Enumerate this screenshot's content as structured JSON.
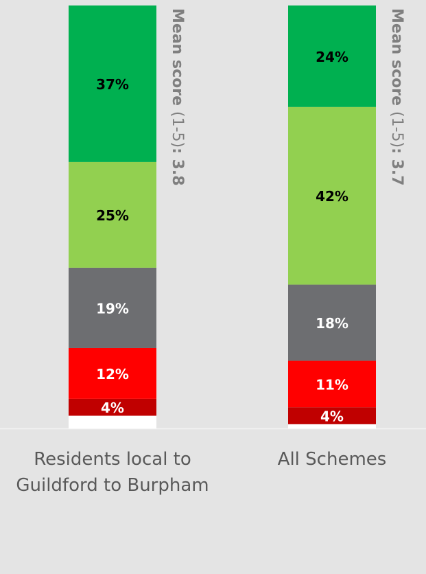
{
  "chart_data": {
    "type": "stacked_bar",
    "categories": [
      "Residents local to Guildford to Burpham",
      "All Schemes"
    ],
    "ylim": [
      0,
      100
    ],
    "series": [
      {
        "color": "#ffffff",
        "values": [
          3,
          1
        ]
      },
      {
        "color": "#c00000",
        "values": [
          4,
          4
        ],
        "value_labels": [
          "4%",
          "4%"
        ],
        "label_color": "#ffffff"
      },
      {
        "color": "#ff0000",
        "values": [
          12,
          11
        ],
        "value_labels": [
          "12%",
          "11%"
        ],
        "label_color": "#ffffff"
      },
      {
        "color": "#6d6e71",
        "values": [
          19,
          18
        ],
        "value_labels": [
          "19%",
          "18%"
        ],
        "label_color": "#ffffff"
      },
      {
        "color": "#92d050",
        "values": [
          25,
          42
        ],
        "value_labels": [
          "25%",
          "42%"
        ],
        "label_color": "#000000"
      },
      {
        "color": "#00b050",
        "values": [
          37,
          24
        ],
        "value_labels": [
          "37%",
          "24%"
        ],
        "label_color": "#000000"
      }
    ],
    "annotations": [
      {
        "parts": [
          "Mean score",
          "(1-5)",
          ": 3.8"
        ],
        "bold": [
          true,
          false,
          true
        ]
      },
      {
        "parts": [
          "Mean score",
          "(1-5)",
          ": 3.7"
        ],
        "bold": [
          true,
          false,
          true
        ]
      }
    ]
  }
}
